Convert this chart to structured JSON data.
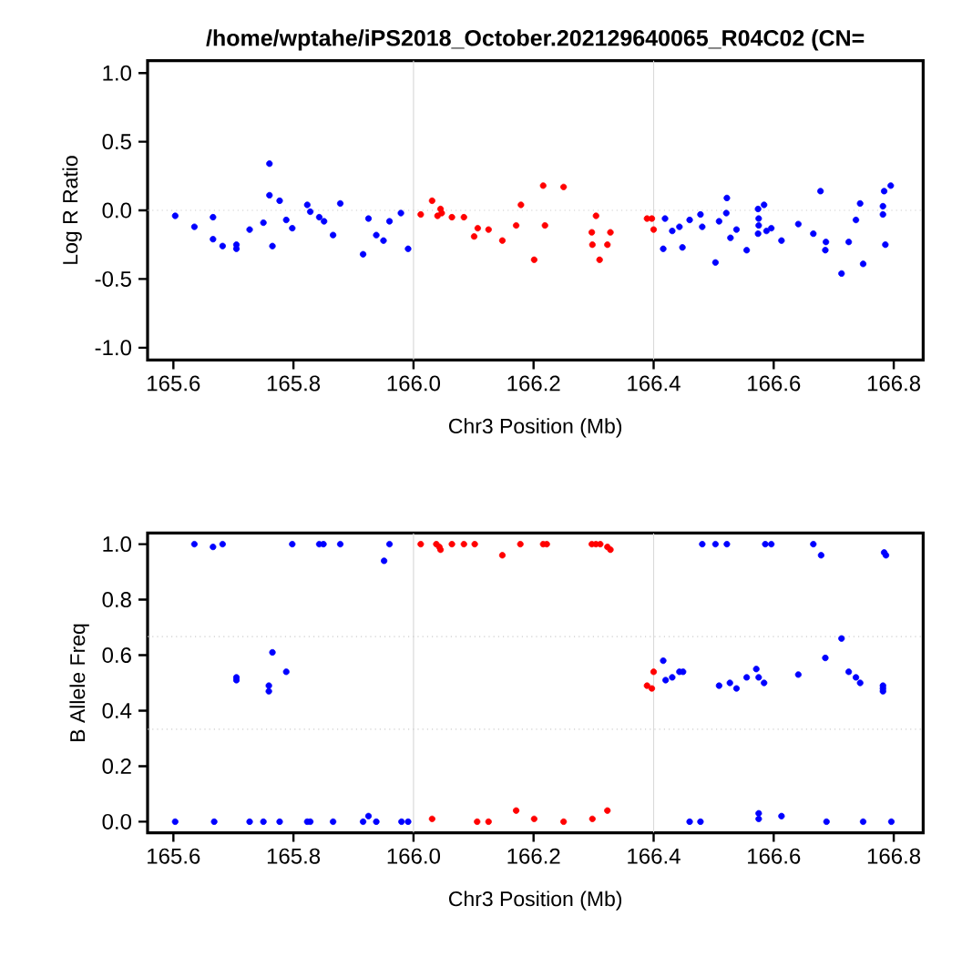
{
  "chart_data": [
    {
      "type": "scatter",
      "title": "/home/wptahe/iPS2018_October.202129640065_R04C02 (CN=",
      "xlabel": "Chr3 Position (Mb)",
      "ylabel": "Log R Ratio",
      "marker": "circle",
      "grid": false,
      "xlim": [
        165.557,
        166.849
      ],
      "ylim": [
        -1.09,
        1.09
      ],
      "xticks": [
        {
          "value": 165.6,
          "label": "165.6"
        },
        {
          "value": 165.8,
          "label": "165.8"
        },
        {
          "value": 166.0,
          "label": "166.0"
        },
        {
          "value": 166.2,
          "label": "166.2"
        },
        {
          "value": 166.4,
          "label": "166.4"
        },
        {
          "value": 166.6,
          "label": "166.6"
        },
        {
          "value": 166.8,
          "label": "166.8"
        }
      ],
      "yticks": [
        {
          "value": -1.0,
          "label": "-1.0"
        },
        {
          "value": -0.5,
          "label": "-0.5"
        },
        {
          "value": 0.0,
          "label": "0.0"
        },
        {
          "value": 0.5,
          "label": "0.5"
        },
        {
          "value": 1.0,
          "label": "1.0"
        }
      ],
      "ref_lines": [
        {
          "axis": "x",
          "value": 166.0,
          "color": "#d9d9d9",
          "line_style": "solid"
        },
        {
          "axis": "x",
          "value": 166.4,
          "color": "#d9d9d9",
          "line_style": "solid"
        },
        {
          "axis": "y",
          "value": 0.0,
          "color": "#cccccc",
          "line_style": "dotted"
        }
      ],
      "series": [
        {
          "color": "#0000ff",
          "x": [
            165.603,
            165.635,
            165.666,
            165.666,
            165.682,
            165.705,
            165.705,
            165.727,
            165.75,
            165.76,
            165.76,
            165.765,
            165.777,
            165.788,
            165.798,
            165.823,
            165.828,
            165.843,
            165.851,
            165.866,
            165.878,
            165.916,
            165.925,
            165.938,
            165.95,
            165.96,
            165.979,
            165.991,
            166.419,
            166.416,
            166.431,
            166.443,
            166.448,
            166.46,
            166.478,
            166.481,
            166.503,
            166.509,
            166.521,
            166.522,
            166.528,
            166.538,
            166.555,
            166.574,
            166.575,
            166.575,
            166.574,
            166.584,
            166.588,
            166.596,
            166.613,
            166.641,
            166.666,
            166.678,
            166.687,
            166.686,
            166.713,
            166.725,
            166.737,
            166.744,
            166.749,
            166.782,
            166.782,
            166.784,
            166.786,
            166.795
          ],
          "values": [
            -0.04,
            -0.12,
            -0.05,
            -0.21,
            -0.26,
            -0.25,
            -0.28,
            -0.14,
            -0.09,
            0.34,
            0.11,
            -0.26,
            0.07,
            -0.07,
            -0.13,
            0.04,
            -0.01,
            -0.05,
            -0.08,
            -0.18,
            0.05,
            -0.32,
            -0.06,
            -0.18,
            -0.22,
            -0.08,
            -0.02,
            -0.28,
            -0.06,
            -0.28,
            -0.15,
            -0.12,
            -0.27,
            -0.07,
            -0.03,
            -0.12,
            -0.38,
            -0.08,
            -0.02,
            0.09,
            -0.2,
            -0.14,
            -0.29,
            0.01,
            -0.06,
            -0.11,
            -0.17,
            0.04,
            -0.15,
            -0.13,
            -0.22,
            -0.1,
            -0.17,
            0.14,
            -0.23,
            -0.29,
            -0.46,
            -0.23,
            -0.07,
            0.05,
            -0.39,
            0.03,
            -0.03,
            0.14,
            -0.25,
            0.18
          ]
        },
        {
          "color": "#ff0000",
          "x": [
            166.012,
            166.031,
            166.04,
            166.045,
            166.047,
            166.064,
            166.084,
            166.101,
            166.107,
            166.125,
            166.148,
            166.171,
            166.179,
            166.201,
            166.216,
            166.219,
            166.25,
            166.297,
            166.298,
            166.304,
            166.31,
            166.323,
            166.328,
            166.389,
            166.397,
            166.4
          ],
          "values": [
            -0.03,
            0.07,
            -0.04,
            0.01,
            -0.02,
            -0.05,
            -0.05,
            -0.19,
            -0.13,
            -0.14,
            -0.22,
            -0.11,
            0.04,
            -0.36,
            0.18,
            -0.11,
            0.17,
            -0.16,
            -0.25,
            -0.04,
            -0.36,
            -0.25,
            -0.16,
            -0.06,
            -0.06,
            -0.14
          ]
        }
      ]
    },
    {
      "type": "scatter",
      "xlabel": "Chr3 Position (Mb)",
      "ylabel": "B Allele Freq",
      "marker": "circle",
      "grid": false,
      "xlim": [
        165.557,
        166.849
      ],
      "ylim": [
        -0.04,
        1.04
      ],
      "xticks": [
        {
          "value": 165.6,
          "label": "165.6"
        },
        {
          "value": 165.8,
          "label": "165.8"
        },
        {
          "value": 166.0,
          "label": "166.0"
        },
        {
          "value": 166.2,
          "label": "166.2"
        },
        {
          "value": 166.4,
          "label": "166.4"
        },
        {
          "value": 166.6,
          "label": "166.6"
        },
        {
          "value": 166.8,
          "label": "166.8"
        }
      ],
      "yticks": [
        {
          "value": 0.0,
          "label": "0.0"
        },
        {
          "value": 0.2,
          "label": "0.2"
        },
        {
          "value": 0.4,
          "label": "0.4"
        },
        {
          "value": 0.6,
          "label": "0.6"
        },
        {
          "value": 0.8,
          "label": "0.8"
        },
        {
          "value": 1.0,
          "label": "1.0"
        }
      ],
      "ref_lines": [
        {
          "axis": "x",
          "value": 166.0,
          "color": "#d9d9d9",
          "line_style": "solid"
        },
        {
          "axis": "x",
          "value": 166.4,
          "color": "#d9d9d9",
          "line_style": "solid"
        },
        {
          "axis": "y",
          "value": 0.333,
          "color": "#cccccc",
          "line_style": "dotted"
        },
        {
          "axis": "y",
          "value": 0.667,
          "color": "#cccccc",
          "line_style": "dotted"
        }
      ],
      "series": [
        {
          "color": "#0000ff",
          "x": [
            165.635,
            165.666,
            165.682,
            165.798,
            165.843,
            165.85,
            165.878,
            165.951,
            165.96,
            165.705,
            165.705,
            165.765,
            165.759,
            165.759,
            165.788,
            165.603,
            165.668,
            165.727,
            165.75,
            165.777,
            165.823,
            165.828,
            165.866,
            165.916,
            165.925,
            165.938,
            165.98,
            165.991,
            166.481,
            166.503,
            166.522,
            166.586,
            166.596,
            166.666,
            166.679,
            166.784,
            166.787,
            166.416,
            166.42,
            166.431,
            166.443,
            166.449,
            166.509,
            166.527,
            166.538,
            166.555,
            166.571,
            166.575,
            166.584,
            166.641,
            166.686,
            166.713,
            166.725,
            166.737,
            166.744,
            166.782,
            166.782,
            166.782,
            166.46,
            166.478,
            166.575,
            166.575,
            166.613,
            166.688,
            166.749,
            166.796
          ],
          "values": [
            1.0,
            0.99,
            1.0,
            1.0,
            1.0,
            1.0,
            1.0,
            0.94,
            1.0,
            0.52,
            0.51,
            0.61,
            0.49,
            0.47,
            0.54,
            0.0,
            0.0,
            0.0,
            0.0,
            0.0,
            0.0,
            0.0,
            0.0,
            0.0,
            0.02,
            0.0,
            0.0,
            0.0,
            1.0,
            1.0,
            1.0,
            1.0,
            1.0,
            1.0,
            0.96,
            0.97,
            0.96,
            0.58,
            0.51,
            0.52,
            0.54,
            0.54,
            0.49,
            0.5,
            0.48,
            0.52,
            0.55,
            0.52,
            0.5,
            0.53,
            0.59,
            0.66,
            0.54,
            0.52,
            0.5,
            0.49,
            0.48,
            0.47,
            0.0,
            0.0,
            0.03,
            0.01,
            0.02,
            0.0,
            0.0,
            0.0
          ]
        },
        {
          "color": "#ff0000",
          "x": [
            166.012,
            166.038,
            166.043,
            166.045,
            166.064,
            166.084,
            166.102,
            166.148,
            166.178,
            166.216,
            166.222,
            166.297,
            166.304,
            166.311,
            166.323,
            166.328,
            166.4,
            166.389,
            166.397,
            166.031,
            166.106,
            166.125,
            166.171,
            166.201,
            166.25,
            166.298,
            166.323
          ],
          "values": [
            1.0,
            1.0,
            0.99,
            0.98,
            1.0,
            1.0,
            1.0,
            0.96,
            1.0,
            1.0,
            1.0,
            1.0,
            1.0,
            1.0,
            0.99,
            0.98,
            0.54,
            0.49,
            0.48,
            0.01,
            0.0,
            0.0,
            0.04,
            0.01,
            0.0,
            0.01,
            0.04
          ]
        }
      ]
    }
  ]
}
